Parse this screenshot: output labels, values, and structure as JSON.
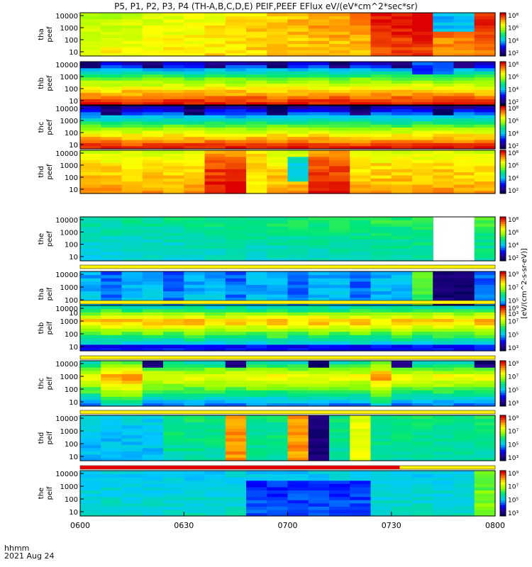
{
  "title": "P5, P1, P2, P3, P4 (TH-A,B,C,D,E) PEIF,PEEF EFlux eV/(eV*cm^2*sec*sr)",
  "footer": {
    "time_label": "hhmm",
    "date_label": "2021 Aug 24"
  },
  "colorbar_unit": "[eV/(cm^2-s-sr-eV)]",
  "chart_data": {
    "type": "heatmap",
    "x_ticks": [
      "0600",
      "0630",
      "0700",
      "0730",
      "0800"
    ],
    "y_ticks": [
      "10",
      "100",
      "1000",
      "10000"
    ],
    "panels": [
      {
        "label": [
          "tha",
          "peef"
        ],
        "cb_ticks": [
          "10²",
          "10⁴",
          "10⁶",
          "10⁸"
        ],
        "base": [
          0.75,
          0.7,
          0.68,
          0.62
        ],
        "pattern": "tha_peef"
      },
      {
        "label": [
          "thb",
          "peef"
        ],
        "cb_ticks": [
          "10²",
          "10⁴",
          "10⁶",
          "10⁸"
        ],
        "base": [
          0.98,
          0.78,
          0.55,
          0.15
        ],
        "pattern": "thb_peef"
      },
      {
        "label": [
          "thc",
          "peef"
        ],
        "cb_ticks": [
          "10²",
          "10⁴",
          "10⁶",
          "10⁸"
        ],
        "base": [
          0.98,
          0.75,
          0.45,
          0.12
        ],
        "pattern": "thc_peef"
      },
      {
        "label": [
          "thd",
          "peef"
        ],
        "cb_ticks": [
          "10²",
          "10⁴",
          "10⁶",
          "10⁸"
        ],
        "base": [
          0.85,
          0.8,
          0.78,
          0.7
        ],
        "pattern": "thd_peef"
      },
      {
        "label": [
          "the",
          "peef"
        ],
        "cb_ticks": [
          "10²",
          "10⁴",
          "10⁶",
          "10⁸"
        ],
        "base": [
          0.38,
          0.4,
          0.43,
          0.47
        ],
        "pattern": "the_peef"
      },
      {
        "label": [
          "tha",
          "peif"
        ],
        "cb_ticks": [
          "10³",
          "10⁵",
          "10⁷",
          "10⁹"
        ],
        "base": [
          0.38,
          0.36,
          0.34,
          0.33
        ],
        "pattern": "tha_peif"
      },
      {
        "label": [
          "thb",
          "peif"
        ],
        "cb_ticks": [
          "10³",
          "10⁵",
          "10⁷",
          "10⁹"
        ],
        "base": [
          0.28,
          0.55,
          0.85,
          0.45
        ],
        "pattern": "thb_peif"
      },
      {
        "label": [
          "thc",
          "peif"
        ],
        "cb_ticks": [
          "10³",
          "10⁵",
          "10⁷",
          "10⁹"
        ],
        "base": [
          0.3,
          0.55,
          0.75,
          0.45
        ],
        "pattern": "thc_peif"
      },
      {
        "label": [
          "thd",
          "peif"
        ],
        "cb_ticks": [
          "10³",
          "10⁵",
          "10⁷",
          "10⁹"
        ],
        "base": [
          0.45,
          0.47,
          0.48,
          0.5
        ],
        "pattern": "thd_peif"
      },
      {
        "label": [
          "the",
          "peif"
        ],
        "cb_ticks": [
          "10³",
          "10⁵",
          "10⁷",
          "10⁹"
        ],
        "base": [
          0.42,
          0.4,
          0.38,
          0.37
        ],
        "pattern": "the_peif"
      }
    ]
  }
}
